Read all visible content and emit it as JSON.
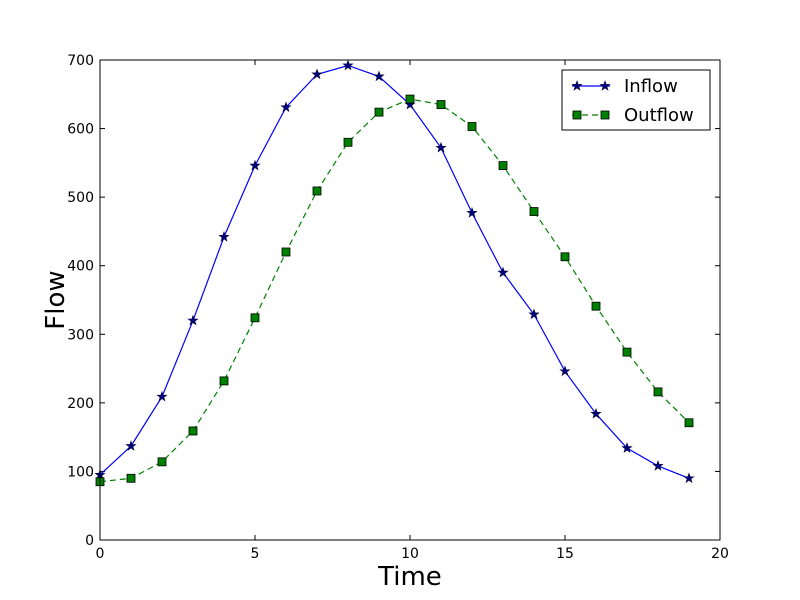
{
  "chart_data": {
    "type": "line",
    "title": "",
    "xlabel": "Time",
    "ylabel": "Flow",
    "xlim": [
      0,
      20
    ],
    "ylim": [
      0,
      700
    ],
    "xticks": [
      0,
      5,
      10,
      15,
      20
    ],
    "yticks": [
      0,
      100,
      200,
      300,
      400,
      500,
      600,
      700
    ],
    "grid": false,
    "legend_position": "top-right",
    "x": [
      0,
      1,
      2,
      3,
      4,
      5,
      6,
      7,
      8,
      9,
      10,
      11,
      12,
      13,
      14,
      15,
      16,
      17,
      18,
      19
    ],
    "series": [
      {
        "name": "Inflow",
        "color": "#0000ff",
        "line_style": "solid",
        "marker": "star",
        "values": [
          95,
          137,
          209,
          320,
          442,
          546,
          631,
          679,
          692,
          676,
          635,
          572,
          477,
          390,
          329,
          246,
          184,
          134,
          108,
          90
        ]
      },
      {
        "name": "Outflow",
        "color": "#008000",
        "line_style": "dashed",
        "marker": "square",
        "values": [
          85,
          90,
          114,
          159,
          232,
          324,
          420,
          509,
          580,
          624,
          643,
          635,
          603,
          546,
          479,
          413,
          341,
          274,
          216,
          171
        ]
      }
    ]
  }
}
